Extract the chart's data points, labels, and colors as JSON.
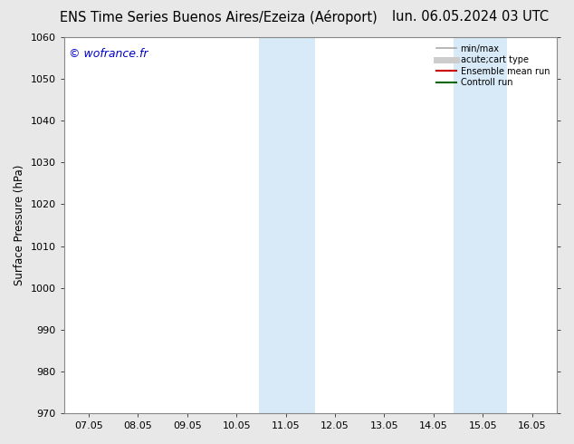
{
  "title_left": "ENS Time Series Buenos Aires/Ezeiza (Aéroport)",
  "title_right": "lun. 06.05.2024 03 UTC",
  "ylabel": "Surface Pressure (hPa)",
  "watermark": "© wofrance.fr",
  "watermark_color": "#0000cc",
  "ylim": [
    970,
    1060
  ],
  "yticks": [
    970,
    980,
    990,
    1000,
    1010,
    1020,
    1030,
    1040,
    1050,
    1060
  ],
  "xlim": [
    0.0,
    10.0
  ],
  "xtick_labels": [
    "07.05",
    "08.05",
    "09.05",
    "10.05",
    "11.05",
    "12.05",
    "13.05",
    "14.05",
    "15.05",
    "16.05"
  ],
  "xtick_positions": [
    0.5,
    1.5,
    2.5,
    3.5,
    4.5,
    5.5,
    6.5,
    7.5,
    8.5,
    9.5
  ],
  "shaded_regions": [
    {
      "xmin": 3.95,
      "xmax": 5.1,
      "color": "#d8eaf8"
    },
    {
      "xmin": 7.9,
      "xmax": 9.0,
      "color": "#d8eaf8"
    }
  ],
  "legend_entries": [
    {
      "label": "min/max",
      "color": "#aaaaaa",
      "lw": 1.2,
      "linestyle": "-"
    },
    {
      "label": "acute;cart type",
      "color": "#cccccc",
      "lw": 5,
      "linestyle": "-"
    },
    {
      "label": "Ensemble mean run",
      "color": "#cc0000",
      "lw": 1.5,
      "linestyle": "-"
    },
    {
      "label": "Controll run",
      "color": "#006600",
      "lw": 1.5,
      "linestyle": "-"
    }
  ],
  "bg_color": "#e8e8e8",
  "plot_bg_color": "#ffffff",
  "spine_color": "#888888",
  "tick_color": "#444444",
  "title_fontsize": 10.5,
  "label_fontsize": 8.5,
  "tick_fontsize": 8,
  "watermark_fontsize": 9
}
